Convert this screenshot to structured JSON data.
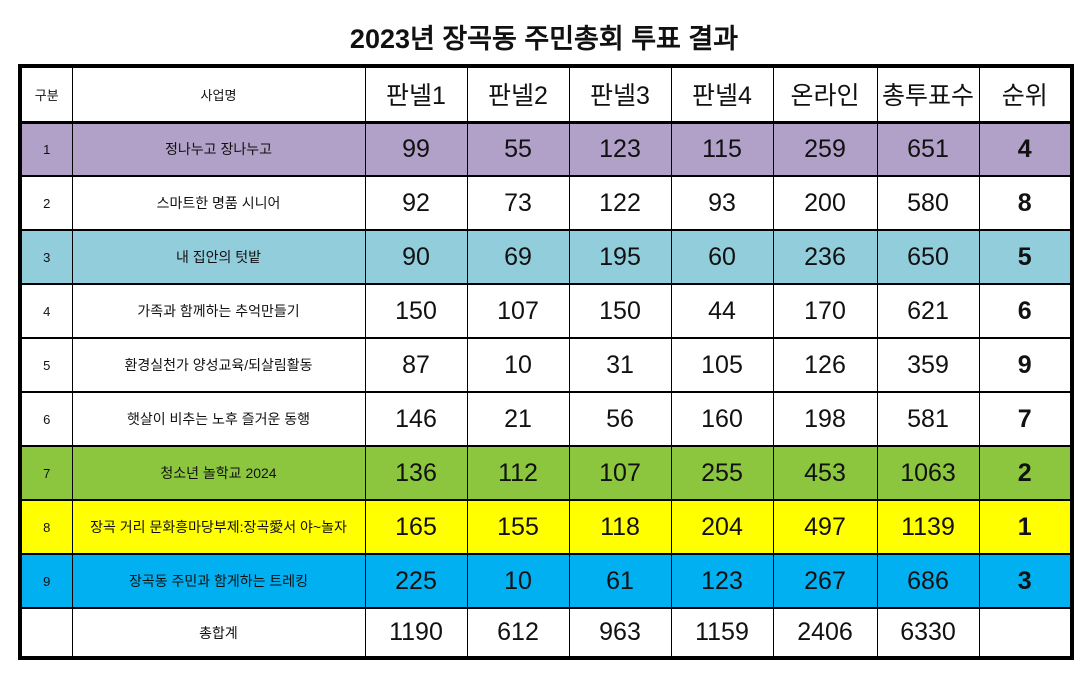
{
  "title": "2023년 장곡동 주민총회 투표 결과",
  "table": {
    "headers": [
      "구분",
      "사업명",
      "판넬1",
      "판넬2",
      "판넬3",
      "판넬4",
      "온라인",
      "총투표수",
      "순위"
    ],
    "rows": [
      {
        "no": "1",
        "name": "정나누고 장나누고",
        "values": [
          "99",
          "55",
          "123",
          "115",
          "259",
          "651"
        ],
        "rank": "4",
        "bg": "#B1A0C7"
      },
      {
        "no": "2",
        "name": "스마트한 명품 시니어",
        "values": [
          "92",
          "73",
          "122",
          "93",
          "200",
          "580"
        ],
        "rank": "8",
        "bg": "#FFFFFF"
      },
      {
        "no": "3",
        "name": "내 집안의 텃밭",
        "values": [
          "90",
          "69",
          "195",
          "60",
          "236",
          "650"
        ],
        "rank": "5",
        "bg": "#92CDDC"
      },
      {
        "no": "4",
        "name": "가족과 함께하는 추억만들기",
        "values": [
          "150",
          "107",
          "150",
          "44",
          "170",
          "621"
        ],
        "rank": "6",
        "bg": "#FFFFFF"
      },
      {
        "no": "5",
        "name": "환경실천가 양성교육/되살림활동",
        "values": [
          "87",
          "10",
          "31",
          "105",
          "126",
          "359"
        ],
        "rank": "9",
        "bg": "#FFFFFF"
      },
      {
        "no": "6",
        "name": "햇살이 비추는 노후 즐거운 동행",
        "values": [
          "146",
          "21",
          "56",
          "160",
          "198",
          "581"
        ],
        "rank": "7",
        "bg": "#FFFFFF"
      },
      {
        "no": "7",
        "name": "청소년 놀학교 2024",
        "values": [
          "136",
          "112",
          "107",
          "255",
          "453",
          "1063"
        ],
        "rank": "2",
        "bg": "#8CC63F"
      },
      {
        "no": "8",
        "name": "장곡 거리 문화흥마당부제:장곡愛서 야~놀자",
        "values": [
          "165",
          "155",
          "118",
          "204",
          "497",
          "1139"
        ],
        "rank": "1",
        "bg": "#FFFF00"
      },
      {
        "no": "9",
        "name": "장곡동 주민과 함게하는 트레킹",
        "values": [
          "225",
          "10",
          "61",
          "123",
          "267",
          "686"
        ],
        "rank": "3",
        "bg": "#00B0F0"
      }
    ],
    "total_row": {
      "no": "",
      "name": "총합계",
      "values": [
        "1190",
        "612",
        "963",
        "1159",
        "2406",
        "6330"
      ],
      "rank": "",
      "bg": "#FFFFFF"
    }
  }
}
